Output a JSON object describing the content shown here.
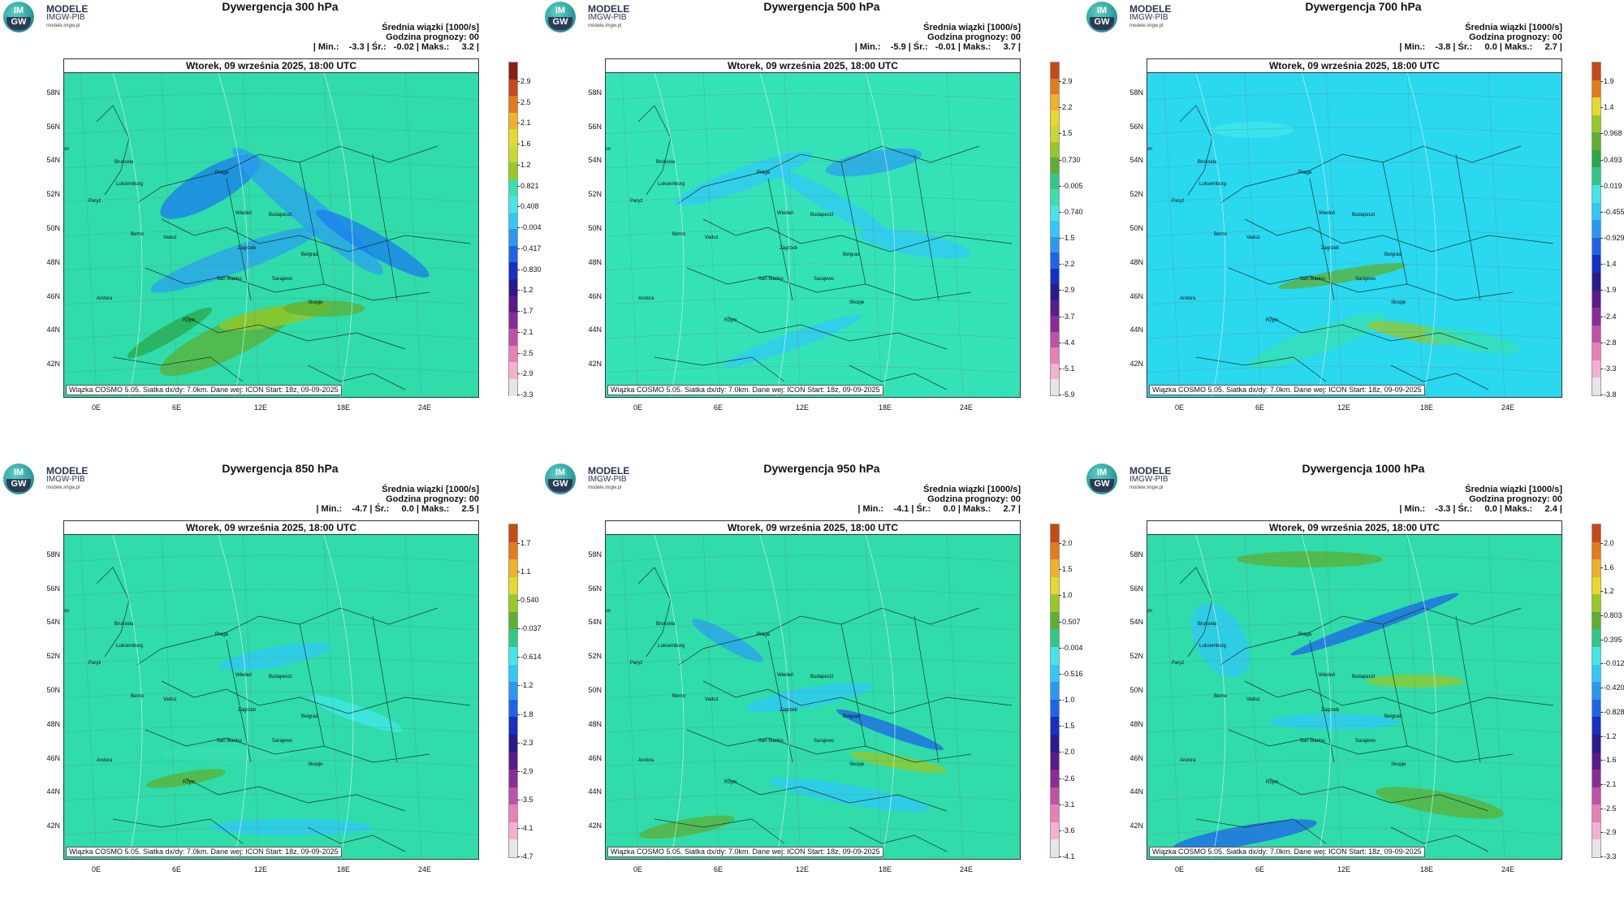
{
  "logo": {
    "circle_top": "IM",
    "circle_bottom": "GW",
    "line1": "MODELE",
    "line2": "IMGW-PIB",
    "line3": "modele.imgw.pl"
  },
  "info": {
    "mean_label": "Średnia wiązki [1000/s]",
    "forecast_hour_label": "Godzina prognozy: 00"
  },
  "map_date": "Wtorek, 09 września 2025, 18:00 UTC",
  "footer": "Wiązka COSMO 5.05. Siatka dx/dy: 7.0km. Dane wej: ICON Start: 18z, 09-09-2025",
  "lat_labels": [
    "58N",
    "56N",
    "54N",
    "52N",
    "50N",
    "48N",
    "46N",
    "44N",
    "42N"
  ],
  "lon_labels": [
    "0E",
    "6E",
    "12E",
    "18E",
    "24E"
  ],
  "cities": [
    "London",
    "Bruksela",
    "Paryż",
    "Luksemburg",
    "Praga",
    "Wiedeń",
    "Berno",
    "Vaduz",
    "Budapeszt",
    "Zagrzeb",
    "Belgrad",
    "Sarajewo",
    "San Marino",
    "Andora",
    "Rzym",
    "Skopje"
  ],
  "colorbar_colors": [
    "#e8e4e8",
    "#f4b0d0",
    "#e880b8",
    "#c050a8",
    "#8a2c98",
    "#5a1a8a",
    "#2a1a90",
    "#1430c8",
    "#1e64e8",
    "#2898f0",
    "#30c8f8",
    "#40e8e8",
    "#38e0b0",
    "#30c888",
    "#28a848",
    "#5cb030",
    "#98c828",
    "#c8d830",
    "#e8d828",
    "#f0b028",
    "#e87818",
    "#c84818",
    "#8a2010"
  ],
  "panels": [
    {
      "title": "Dywergencja 300 hPa",
      "stats": "| Min.:    -3.3 | Śr.:   -0.02 | Maks.:     3.2 |",
      "colorbar_labels": [
        "2.9",
        "2.5",
        "2.1",
        "1.6",
        "1.2",
        "0.821",
        "0.408",
        "-0.004",
        "-0.417",
        "-0.830",
        "-1.2",
        "-1.7",
        "-2.1",
        "-2.5",
        "-2.9",
        "-3.3"
      ],
      "colorbar_sel": [
        22,
        21,
        20,
        19,
        18,
        17,
        16,
        12,
        11,
        10,
        9,
        8,
        7,
        6,
        5,
        4,
        3,
        2,
        1,
        0
      ]
    },
    {
      "title": "Dywergencja 500 hPa",
      "stats": "| Min.:    -5.9 | Śr.:   -0.01 | Maks.:     3.7 |",
      "colorbar_labels": [
        "2.9",
        "2.2",
        "1.5",
        "0.730",
        "-0.005",
        "-0.740",
        "-1.5",
        "-2.2",
        "-2.9",
        "-3.7",
        "-4.4",
        "-5.1",
        "-5.9"
      ],
      "colorbar_sel": [
        21,
        20,
        19,
        18,
        17,
        16,
        15,
        13,
        12,
        11,
        10,
        9,
        8,
        7,
        6,
        5,
        4,
        3,
        2,
        1,
        0
      ]
    },
    {
      "title": "Dywergencja 700 hPa",
      "stats": "| Min.:    -3.8 | Śr.:     0.0 | Maks.:     2.7 |",
      "colorbar_labels": [
        "1.9",
        "1.4",
        "0.968",
        "0.493",
        "0.019",
        "-0.455",
        "-0.929",
        "-1.4",
        "-1.9",
        "-2.4",
        "-2.8",
        "-3.3",
        "-3.8"
      ],
      "colorbar_sel": [
        21,
        20,
        18,
        16,
        15,
        14,
        13,
        11,
        10,
        9,
        8,
        7,
        6,
        5,
        4,
        3,
        2,
        1,
        0
      ]
    },
    {
      "title": "Dywergencja 850 hPa",
      "stats": "| Min.:    -4.7 | Śr.:     0.0 | Maks.:     2.5 |",
      "colorbar_labels": [
        "1.7",
        "1.1",
        "0.540",
        "-0.037",
        "-0.614",
        "-1.2",
        "-1.8",
        "-2.3",
        "-2.9",
        "-3.5",
        "-4.1",
        "-4.7"
      ],
      "colorbar_sel": [
        21,
        20,
        19,
        18,
        16,
        15,
        13,
        11,
        10,
        9,
        8,
        7,
        6,
        5,
        4,
        3,
        2,
        1,
        0
      ]
    },
    {
      "title": "Dywergencja 950 hPa",
      "stats": "| Min.:    -4.1 | Śr.:     0.0 | Maks.:     2.7 |",
      "colorbar_labels": [
        "2.0",
        "1.5",
        "1.0",
        "0.507",
        "-0.004",
        "-0.516",
        "-1.0",
        "-1.5",
        "-2.0",
        "-2.6",
        "-3.1",
        "-3.6",
        "-4.1"
      ],
      "colorbar_sel": [
        21,
        20,
        19,
        18,
        16,
        15,
        13,
        11,
        10,
        9,
        8,
        7,
        6,
        5,
        4,
        3,
        2,
        1,
        0
      ]
    },
    {
      "title": "Dywergencja 1000 hPa",
      "stats": "| Min.:    -3.3 | Śr.:     0.0 | Maks.:     2.4 |",
      "colorbar_labels": [
        "2.0",
        "1.6",
        "1.2",
        "0.803",
        "0.395",
        "-0.012",
        "-0.420",
        "-0.828",
        "-1.2",
        "-1.6",
        "-2.1",
        "-2.5",
        "-2.9",
        "-3.3"
      ],
      "colorbar_sel": [
        21,
        20,
        19,
        18,
        16,
        15,
        13,
        11,
        10,
        9,
        8,
        7,
        6,
        5,
        4,
        3,
        2,
        1,
        0
      ]
    }
  ]
}
